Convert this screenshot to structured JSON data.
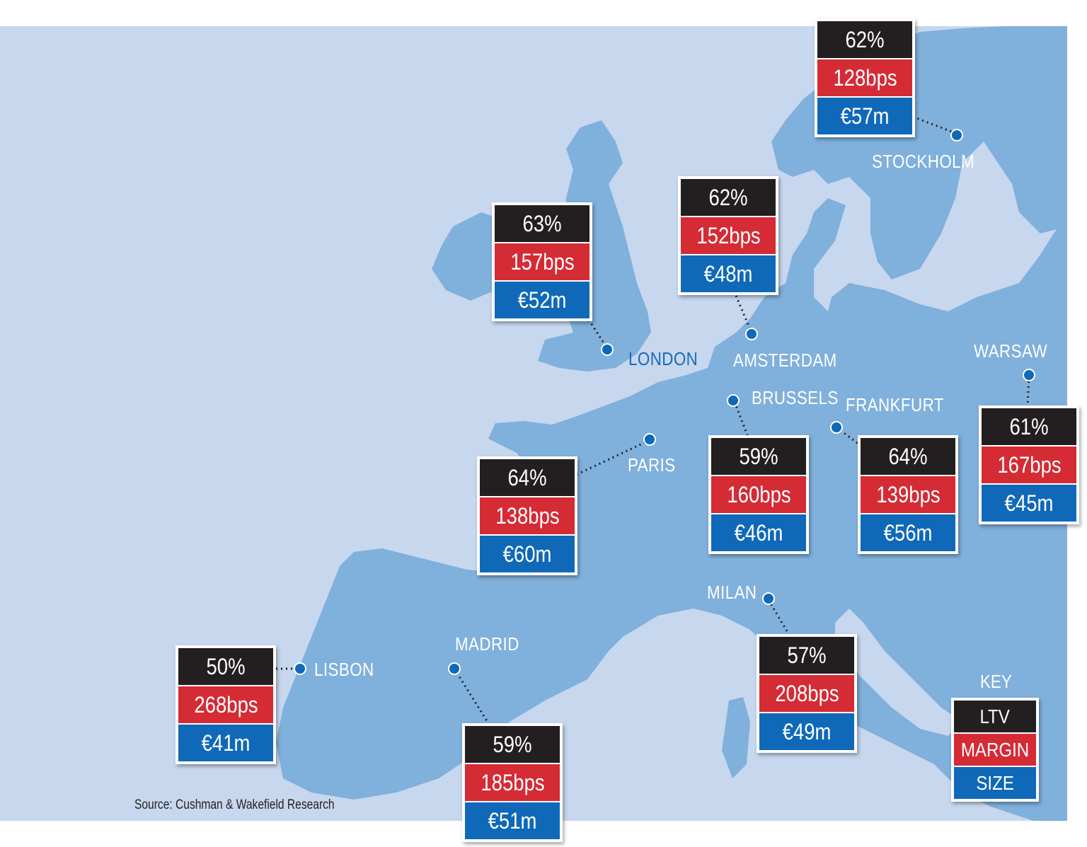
{
  "colors": {
    "sea": "#c7d7ee",
    "land": "#80b0dc",
    "ltv": "#231f20",
    "margin": "#d52b35",
    "size": "#0f69b8",
    "dot": "#0f69b8"
  },
  "cities": {
    "stockholm": {
      "name": "STOCKHOLM",
      "ltv": "62%",
      "margin": "128bps",
      "size": "€57m"
    },
    "london": {
      "name": "LONDON",
      "ltv": "63%",
      "margin": "157bps",
      "size": "€52m"
    },
    "amsterdam": {
      "name": "AMSTERDAM",
      "ltv": "62%",
      "margin": "152bps",
      "size": "€48m"
    },
    "warsaw": {
      "name": "WARSAW",
      "ltv": "61%",
      "margin": "167bps",
      "size": "€45m"
    },
    "brussels": {
      "name": "BRUSSELS",
      "ltv": "59%",
      "margin": "160bps",
      "size": "€46m"
    },
    "frankfurt": {
      "name": "FRANKFURT",
      "ltv": "64%",
      "margin": "139bps",
      "size": "€56m"
    },
    "paris": {
      "name": "PARIS",
      "ltv": "64%",
      "margin": "138bps",
      "size": "€60m"
    },
    "milan": {
      "name": "MILAN",
      "ltv": "57%",
      "margin": "208bps",
      "size": "€49m"
    },
    "lisbon": {
      "name": "LISBON",
      "ltv": "50%",
      "margin": "268bps",
      "size": "€41m"
    },
    "madrid": {
      "name": "MADRID",
      "ltv": "59%",
      "margin": "185bps",
      "size": "€51m"
    }
  },
  "key": {
    "title": "KEY",
    "ltv": "LTV",
    "margin": "MARGIN",
    "size": "SIZE"
  },
  "source": "Source: Cushman & Wakefield Research"
}
